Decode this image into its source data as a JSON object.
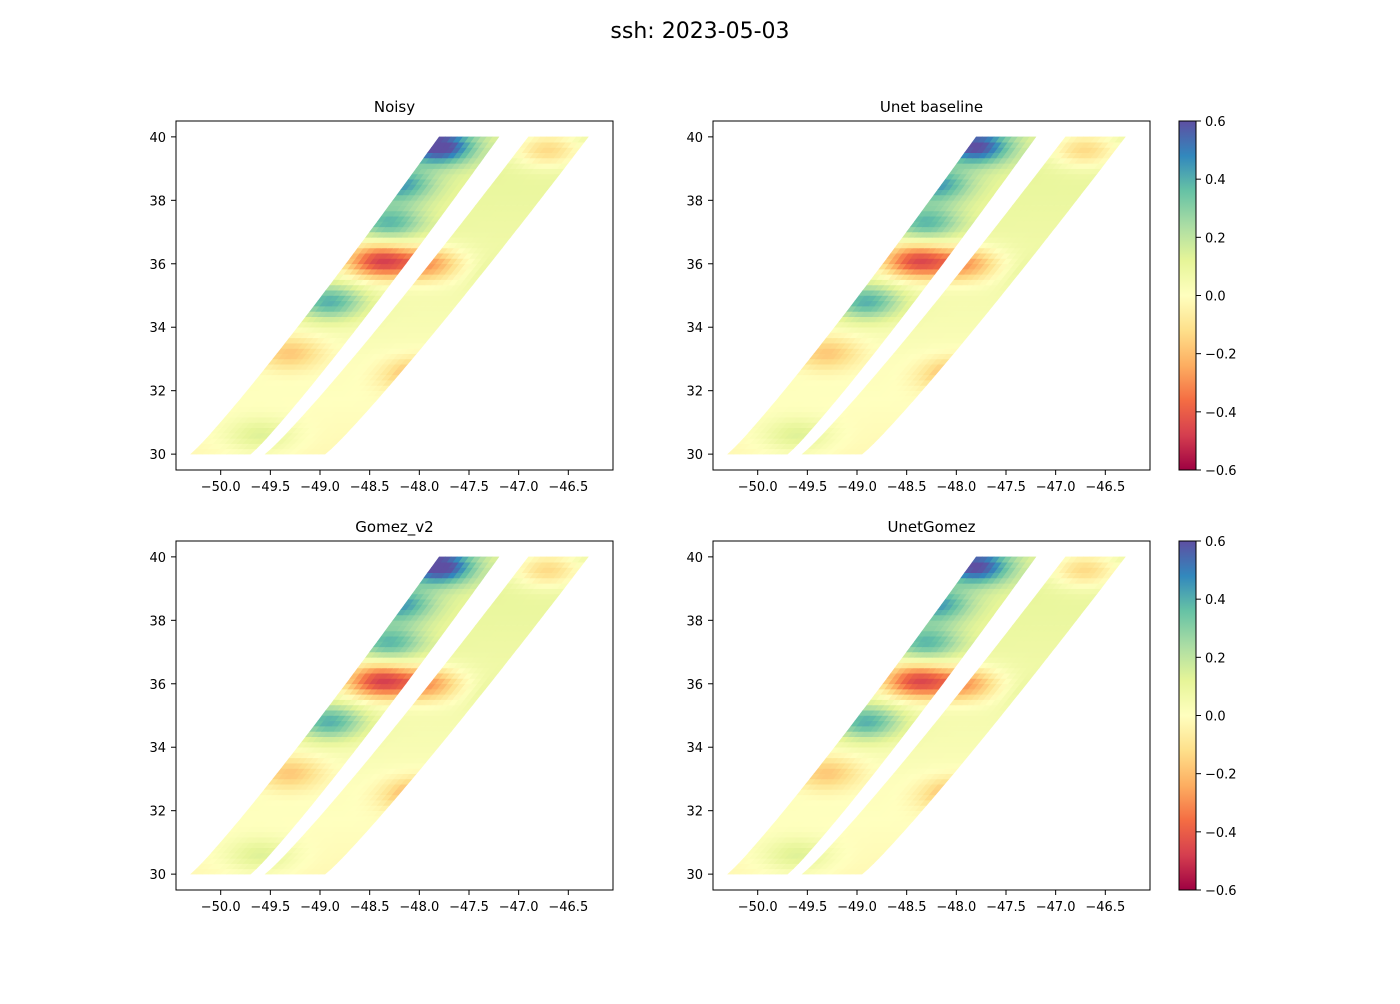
{
  "figure": {
    "title": "ssh: 2023-05-03"
  },
  "colorbar": {
    "colormap": "Spectral",
    "range": [
      -0.6,
      0.6
    ],
    "tick_labels": [
      "0.6",
      "0.4",
      "0.2",
      "0.0",
      "−0.2",
      "−0.4",
      "−0.6"
    ],
    "tick_values": [
      0.6,
      0.4,
      0.2,
      0.0,
      -0.2,
      -0.4,
      -0.6
    ]
  },
  "chart_data": [
    {
      "type": "heatmap",
      "title": "Noisy",
      "xlabel": "",
      "ylabel": "",
      "xlim": [
        -50.45,
        -46.05
      ],
      "ylim": [
        29.5,
        40.5
      ],
      "x_tick_values": [
        -50.0,
        -49.5,
        -49.0,
        -48.5,
        -48.0,
        -47.5,
        -47.0,
        -46.5
      ],
      "x_tick_labels": [
        "−50.0",
        "−49.5",
        "−49.0",
        "−48.5",
        "−48.0",
        "−47.5",
        "−47.0",
        "−46.5"
      ],
      "y_tick_values": [
        30,
        32,
        34,
        36,
        38,
        40
      ],
      "y_tick_labels": [
        "30",
        "32",
        "34",
        "36",
        "38",
        "40"
      ],
      "swaths": [
        {
          "lon_start": [
            -50.3,
            -49.7
          ],
          "lon_end": [
            -47.8,
            -47.2
          ],
          "lat_range": [
            30,
            40
          ]
        },
        {
          "lon_start": [
            -49.55,
            -48.95
          ],
          "lon_end": [
            -46.9,
            -46.3
          ],
          "lat_range": [
            30,
            40
          ]
        }
      ],
      "features": [
        {
          "lon": -48.4,
          "lat": 36.1,
          "ssh": -0.5
        },
        {
          "lon": -47.9,
          "lat": 36.0,
          "ssh": -0.3
        },
        {
          "lon": -47.8,
          "lat": 39.7,
          "ssh": 0.55
        },
        {
          "lon": -48.2,
          "lat": 38.5,
          "ssh": 0.35
        },
        {
          "lon": -48.9,
          "lat": 34.8,
          "ssh": 0.35
        },
        {
          "lon": -48.3,
          "lat": 37.3,
          "ssh": 0.3
        },
        {
          "lon": -46.7,
          "lat": 39.6,
          "ssh": -0.25
        },
        {
          "lon": -48.0,
          "lat": 32.5,
          "ssh": -0.25
        },
        {
          "lon": -49.3,
          "lat": 33.2,
          "ssh": -0.2
        },
        {
          "lon": -47.0,
          "lat": 35.5,
          "ssh": 0.2
        },
        {
          "lon": -49.6,
          "lat": 30.6,
          "ssh": 0.15
        }
      ]
    },
    {
      "type": "heatmap",
      "title": "Unet baseline",
      "xlabel": "",
      "ylabel": "",
      "xlim": [
        -50.45,
        -46.05
      ],
      "ylim": [
        29.5,
        40.5
      ],
      "x_tick_values": [
        -50.0,
        -49.5,
        -49.0,
        -48.5,
        -48.0,
        -47.5,
        -47.0,
        -46.5
      ],
      "x_tick_labels": [
        "−50.0",
        "−49.5",
        "−49.0",
        "−48.5",
        "−48.0",
        "−47.5",
        "−47.0",
        "−46.5"
      ],
      "y_tick_values": [
        30,
        32,
        34,
        36,
        38,
        40
      ],
      "y_tick_labels": [
        "30",
        "32",
        "34",
        "36",
        "38",
        "40"
      ],
      "swaths": [
        {
          "lon_start": [
            -50.3,
            -49.7
          ],
          "lon_end": [
            -47.8,
            -47.2
          ],
          "lat_range": [
            30,
            40
          ]
        },
        {
          "lon_start": [
            -49.55,
            -48.95
          ],
          "lon_end": [
            -46.9,
            -46.3
          ],
          "lat_range": [
            30,
            40
          ]
        }
      ],
      "features": [
        {
          "lon": -48.4,
          "lat": 36.1,
          "ssh": -0.48
        },
        {
          "lon": -47.9,
          "lat": 36.0,
          "ssh": -0.3
        },
        {
          "lon": -47.8,
          "lat": 39.7,
          "ssh": 0.5
        },
        {
          "lon": -48.2,
          "lat": 38.5,
          "ssh": 0.35
        },
        {
          "lon": -48.9,
          "lat": 34.8,
          "ssh": 0.35
        },
        {
          "lon": -48.3,
          "lat": 37.3,
          "ssh": 0.3
        },
        {
          "lon": -46.7,
          "lat": 39.6,
          "ssh": -0.25
        },
        {
          "lon": -48.0,
          "lat": 32.5,
          "ssh": -0.25
        },
        {
          "lon": -49.3,
          "lat": 33.2,
          "ssh": -0.2
        },
        {
          "lon": -47.0,
          "lat": 35.5,
          "ssh": 0.2
        },
        {
          "lon": -49.6,
          "lat": 30.6,
          "ssh": 0.15
        }
      ]
    },
    {
      "type": "heatmap",
      "title": "Gomez_v2",
      "xlabel": "",
      "ylabel": "",
      "xlim": [
        -50.45,
        -46.05
      ],
      "ylim": [
        29.5,
        40.5
      ],
      "x_tick_values": [
        -50.0,
        -49.5,
        -49.0,
        -48.5,
        -48.0,
        -47.5,
        -47.0,
        -46.5
      ],
      "x_tick_labels": [
        "−50.0",
        "−49.5",
        "−49.0",
        "−48.5",
        "−48.0",
        "−47.5",
        "−47.0",
        "−46.5"
      ],
      "y_tick_values": [
        30,
        32,
        34,
        36,
        38,
        40
      ],
      "y_tick_labels": [
        "30",
        "32",
        "34",
        "36",
        "38",
        "40"
      ],
      "swaths": [
        {
          "lon_start": [
            -50.3,
            -49.7
          ],
          "lon_end": [
            -47.8,
            -47.2
          ],
          "lat_range": [
            30,
            40
          ]
        },
        {
          "lon_start": [
            -49.55,
            -48.95
          ],
          "lon_end": [
            -46.9,
            -46.3
          ],
          "lat_range": [
            30,
            40
          ]
        }
      ],
      "features": [
        {
          "lon": -48.4,
          "lat": 36.1,
          "ssh": -0.5
        },
        {
          "lon": -47.9,
          "lat": 36.0,
          "ssh": -0.3
        },
        {
          "lon": -47.8,
          "lat": 39.7,
          "ssh": 0.55
        },
        {
          "lon": -48.2,
          "lat": 38.5,
          "ssh": 0.35
        },
        {
          "lon": -48.9,
          "lat": 34.8,
          "ssh": 0.35
        },
        {
          "lon": -48.3,
          "lat": 37.3,
          "ssh": 0.3
        },
        {
          "lon": -46.7,
          "lat": 39.6,
          "ssh": -0.25
        },
        {
          "lon": -48.0,
          "lat": 32.5,
          "ssh": -0.28
        },
        {
          "lon": -49.3,
          "lat": 33.2,
          "ssh": -0.2
        },
        {
          "lon": -47.0,
          "lat": 35.5,
          "ssh": 0.2
        },
        {
          "lon": -49.6,
          "lat": 30.6,
          "ssh": 0.15
        }
      ]
    },
    {
      "type": "heatmap",
      "title": "UnetGomez",
      "xlabel": "",
      "ylabel": "",
      "xlim": [
        -50.45,
        -46.05
      ],
      "ylim": [
        29.5,
        40.5
      ],
      "x_tick_values": [
        -50.0,
        -49.5,
        -49.0,
        -48.5,
        -48.0,
        -47.5,
        -47.0,
        -46.5
      ],
      "x_tick_labels": [
        "−50.0",
        "−49.5",
        "−49.0",
        "−48.5",
        "−48.0",
        "−47.5",
        "−47.0",
        "−46.5"
      ],
      "y_tick_values": [
        30,
        32,
        34,
        36,
        38,
        40
      ],
      "y_tick_labels": [
        "30",
        "32",
        "34",
        "36",
        "38",
        "40"
      ],
      "swaths": [
        {
          "lon_start": [
            -50.3,
            -49.7
          ],
          "lon_end": [
            -47.8,
            -47.2
          ],
          "lat_range": [
            30,
            40
          ]
        },
        {
          "lon_start": [
            -49.55,
            -48.95
          ],
          "lon_end": [
            -46.9,
            -46.3
          ],
          "lat_range": [
            30,
            40
          ]
        }
      ],
      "features": [
        {
          "lon": -48.4,
          "lat": 36.1,
          "ssh": -0.48
        },
        {
          "lon": -47.9,
          "lat": 36.0,
          "ssh": -0.3
        },
        {
          "lon": -47.8,
          "lat": 39.7,
          "ssh": 0.5
        },
        {
          "lon": -48.2,
          "lat": 38.5,
          "ssh": 0.35
        },
        {
          "lon": -48.9,
          "lat": 34.8,
          "ssh": 0.35
        },
        {
          "lon": -48.3,
          "lat": 37.3,
          "ssh": 0.3
        },
        {
          "lon": -46.7,
          "lat": 39.6,
          "ssh": -0.25
        },
        {
          "lon": -48.0,
          "lat": 32.5,
          "ssh": -0.25
        },
        {
          "lon": -49.3,
          "lat": 33.2,
          "ssh": -0.2
        },
        {
          "lon": -47.0,
          "lat": 35.5,
          "ssh": 0.2
        },
        {
          "lon": -49.6,
          "lat": 30.6,
          "ssh": 0.15
        }
      ]
    }
  ]
}
